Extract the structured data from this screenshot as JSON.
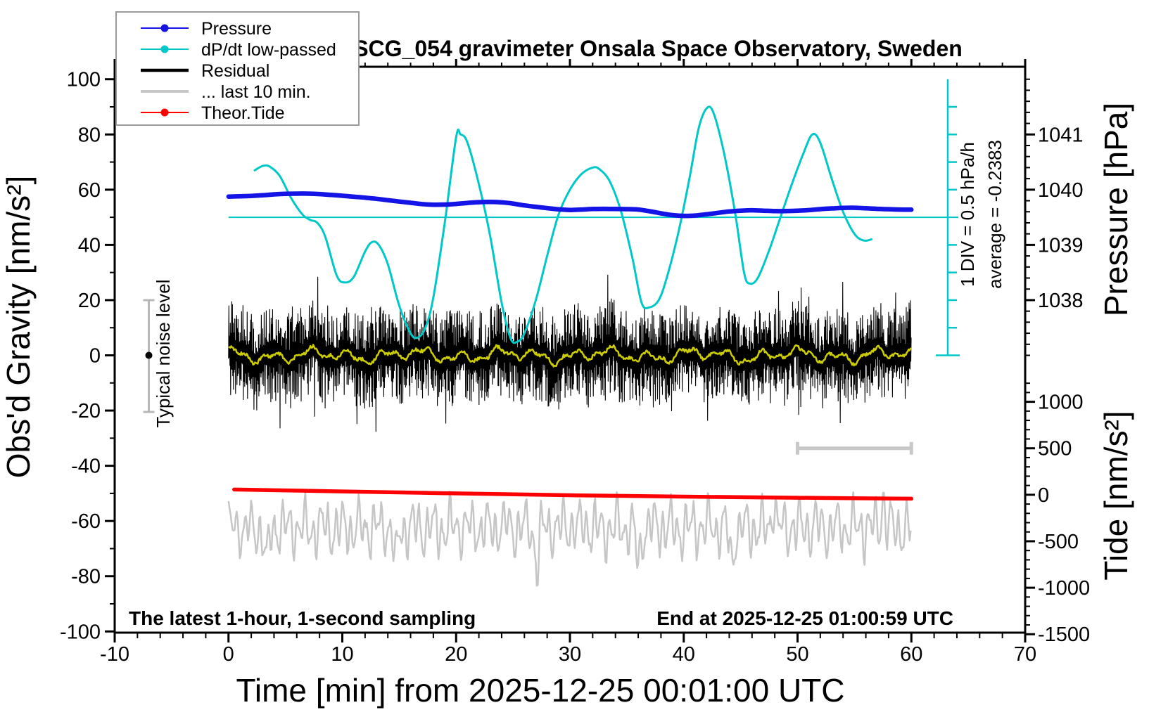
{
  "texts": {
    "title": "SCG_054 gravimeter Onsala Space Observatory, Sweden",
    "sampling_note": "The latest 1-hour, 1-second sampling",
    "end_note": "End at 2025-12-25 01:00:59 UTC",
    "div_label": "1 DIV = 0.5 hPa/h",
    "avg_label": "average = -0.2383",
    "noise_label": "Typical noise level"
  },
  "legend": {
    "items": [
      {
        "label": "Pressure",
        "color": "#1414e6",
        "marker": true
      },
      {
        "label": "dP/dt low-passed",
        "color": "#00c8c8",
        "marker": true
      },
      {
        "label": "Residual",
        "color": "#000000",
        "marker": false
      },
      {
        "label": "... last 10 min.",
        "color": "#c6c6c6",
        "marker": false
      },
      {
        "label": "Theor.Tide",
        "color": "#ff0000",
        "marker": true
      }
    ]
  },
  "chart_data": {
    "type": "line",
    "title": "SCG_054 gravimeter Onsala Space Observatory, Sweden",
    "x_axis": {
      "title": "Time [min] from 2025-12-25 00:01:00 UTC",
      "units": "min",
      "range": [
        -10,
        70
      ],
      "major_ticks": [
        -10,
        0,
        10,
        20,
        30,
        40,
        50,
        60,
        70
      ],
      "minor_step": 2
    },
    "left_axis": {
      "title": "Obs'd Gravity [nm/s²]",
      "range": [
        -100,
        100
      ],
      "major_ticks": [
        100,
        80,
        60,
        40,
        20,
        0,
        -20,
        -40,
        -60,
        -80,
        -100
      ],
      "minor_step": 10
    },
    "right_pressure_axis": {
      "title": "Pressure [hPa]",
      "tick_labels": [
        1041,
        1040,
        1039,
        1038
      ],
      "minor_step": 0.2,
      "gravity_units_per_hPa": 20,
      "gravity_at_1037_hPa": 0
    },
    "right_tide_axis": {
      "title": "Tide [nm/s²]",
      "tick_labels": [
        1000,
        500,
        0,
        -500,
        -1000,
        -1500
      ],
      "minor_step": 100,
      "gravity_at_zero_tide": -50.5,
      "tide_units_per_gravity_unit": 29.7
    },
    "reference_line": {
      "color": "#00c8c8",
      "gravity_value": 50,
      "meaning": "dP/dt zero line"
    },
    "dpdt_scale_bar": {
      "x_min": 63.2,
      "gravity_top": 100,
      "gravity_bottom": 0,
      "divisions": 10,
      "label": "1 DIV = 0.5 hPa/h",
      "average": -0.2383
    },
    "noise_errorbar": {
      "x_min": -7,
      "gravity_range": [
        -20.5,
        20
      ],
      "dot_at": 0,
      "label": "Typical noise level"
    },
    "last10_window_bar": {
      "x_range": [
        50,
        60
      ],
      "tide_level": 500
    },
    "series": [
      {
        "name": "Pressure",
        "color": "#1414e6",
        "unit": "hPa",
        "axis": "pressure",
        "t_start": 0,
        "t_step": 1,
        "values": [
          1039.875,
          1039.88,
          1039.887,
          1039.898,
          1039.915,
          1039.925,
          1039.928,
          1039.928,
          1039.92,
          1039.905,
          1039.89,
          1039.872,
          1039.855,
          1039.835,
          1039.81,
          1039.785,
          1039.762,
          1039.74,
          1039.728,
          1039.73,
          1039.742,
          1039.76,
          1039.774,
          1039.778,
          1039.77,
          1039.748,
          1039.715,
          1039.69,
          1039.665,
          1039.645,
          1039.633,
          1039.64,
          1039.65,
          1039.653,
          1039.65,
          1039.648,
          1039.64,
          1039.61,
          1039.572,
          1039.54,
          1039.525,
          1039.532,
          1039.555,
          1039.58,
          1039.606,
          1039.62,
          1039.627,
          1039.62,
          1039.612,
          1039.612,
          1039.618,
          1039.63,
          1039.648,
          1039.66,
          1039.67,
          1039.672,
          1039.663,
          1039.653,
          1039.646,
          1039.64,
          1039.638
        ]
      },
      {
        "name": "dP/dt low-passed",
        "color": "#00c8c8",
        "unit": "hPa/h",
        "axis": "dpdt",
        "points": [
          [
            2.3,
            0.85
          ],
          [
            3,
            0.93
          ],
          [
            3.6,
            0.92
          ],
          [
            4.5,
            0.75
          ],
          [
            5.5,
            0.35
          ],
          [
            6.5,
            0.05
          ],
          [
            7.2,
            -0.05
          ],
          [
            7.8,
            -0.1
          ],
          [
            8.5,
            -0.35
          ],
          [
            9.5,
            -1.05
          ],
          [
            10.2,
            -1.18
          ],
          [
            11,
            -1.08
          ],
          [
            12,
            -0.62
          ],
          [
            12.6,
            -0.45
          ],
          [
            13.2,
            -0.5
          ],
          [
            14,
            -0.85
          ],
          [
            15,
            -1.6
          ],
          [
            16,
            -2.1
          ],
          [
            16.6,
            -2.18
          ],
          [
            17.3,
            -2.0
          ],
          [
            18,
            -1.45
          ],
          [
            19,
            -0.1
          ],
          [
            20,
            1.45
          ],
          [
            20.4,
            1.5
          ],
          [
            21,
            1.35
          ],
          [
            22,
            0.6
          ],
          [
            23,
            -0.35
          ],
          [
            24,
            -1.55
          ],
          [
            24.8,
            -2.2
          ],
          [
            25.4,
            -2.25
          ],
          [
            26,
            -2.1
          ],
          [
            27,
            -1.5
          ],
          [
            28,
            -0.7
          ],
          [
            29,
            0.05
          ],
          [
            30,
            0.5
          ],
          [
            31,
            0.78
          ],
          [
            32,
            0.9
          ],
          [
            32.6,
            0.87
          ],
          [
            33.5,
            0.65
          ],
          [
            34.5,
            0.1
          ],
          [
            35.5,
            -0.75
          ],
          [
            36.3,
            -1.55
          ],
          [
            37,
            -1.63
          ],
          [
            37.8,
            -1.5
          ],
          [
            38.5,
            -1.1
          ],
          [
            39.5,
            -0.3
          ],
          [
            40.5,
            0.7
          ],
          [
            41.3,
            1.6
          ],
          [
            42,
            1.97
          ],
          [
            42.6,
            1.9
          ],
          [
            43.5,
            1.2
          ],
          [
            44.5,
            0.1
          ],
          [
            45.3,
            -1.0
          ],
          [
            45.8,
            -1.2
          ],
          [
            46.5,
            -1.1
          ],
          [
            47.5,
            -0.6
          ],
          [
            48.5,
            0.0
          ],
          [
            49.5,
            0.6
          ],
          [
            50.5,
            1.15
          ],
          [
            51.3,
            1.5
          ],
          [
            52,
            1.35
          ],
          [
            53,
            0.7
          ],
          [
            54,
            0.1
          ],
          [
            55,
            -0.3
          ],
          [
            55.8,
            -0.42
          ],
          [
            56.5,
            -0.4
          ]
        ]
      },
      {
        "name": "Residual",
        "color": "#000000",
        "unit": "nm/s²",
        "axis": "gravity",
        "representation": "stochastic-1s-noise",
        "t_range": [
          0,
          60
        ],
        "center": 0,
        "typical_amplitude": 12,
        "max_spike": 27,
        "seed": 1234,
        "smoothed": {
          "color": "#cdcd00",
          "amplitude": 3
        }
      },
      {
        "name": "... last 10 min.",
        "color": "#c6c6c6",
        "unit": "nm/s²",
        "axis": "gravity",
        "representation": "stochastic-wiggle",
        "t_range": [
          0,
          60
        ],
        "center": -62.5,
        "amplitude": 13,
        "deep_dips_at": [
          3.35,
          14.7,
          27.1,
          36.0,
          44.2
        ],
        "peaks_at": [
          47.9,
          57.5
        ],
        "seed": 77,
        "note": "last 10 minutes of residual stretched across full hour width"
      },
      {
        "name": "Theor.Tide",
        "color": "#ff0000",
        "unit": "nm/s²",
        "axis": "tide",
        "points": [
          [
            0.5,
            56
          ],
          [
            10,
            36
          ],
          [
            20,
            15
          ],
          [
            30,
            -5
          ],
          [
            40,
            -20
          ],
          [
            50,
            -32
          ],
          [
            60,
            -42
          ]
        ]
      }
    ]
  }
}
